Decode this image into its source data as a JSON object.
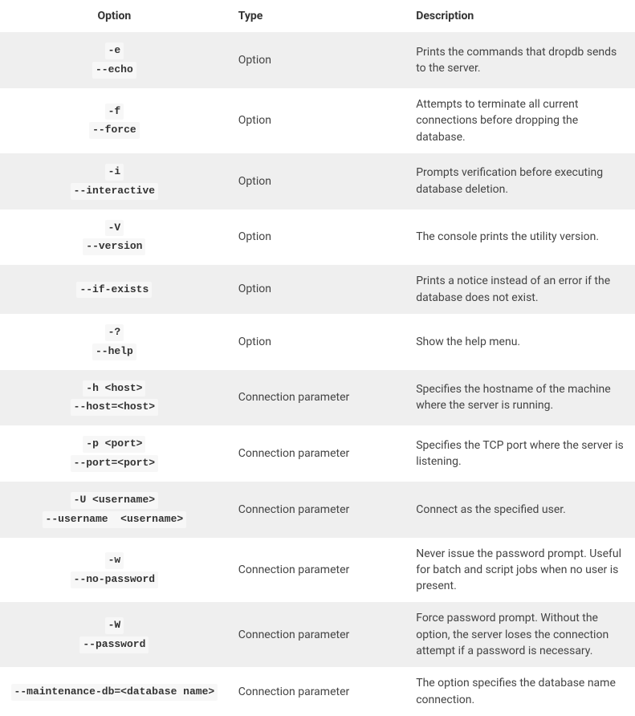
{
  "table": {
    "columns": [
      "Option",
      "Type",
      "Description"
    ],
    "col_widths_pct": [
      36,
      28,
      36
    ],
    "header_color": "#333333",
    "header_bg": "#ffffff",
    "row_bg_odd": "#efefef",
    "row_bg_even": "#ffffff",
    "code_bg": "#f7f7f7",
    "code_color": "#333333",
    "body_color": "#444444",
    "font_family": "-apple-system, Segoe UI, Roboto, Helvetica, Arial, sans-serif",
    "code_font_family": "Courier New, monospace",
    "rows": [
      {
        "option": [
          "-e",
          "--echo"
        ],
        "type": "Option",
        "description": "Prints the commands that dropdb sends to the server."
      },
      {
        "option": [
          "-f",
          "--force"
        ],
        "type": "Option",
        "description": "Attempts to terminate all current connections before dropping the database."
      },
      {
        "option": [
          "-i",
          "--interactive"
        ],
        "type": "Option",
        "description": "Prompts verification before executing database deletion."
      },
      {
        "option": [
          "-V",
          "--version"
        ],
        "type": "Option",
        "description": "The console prints the utility version."
      },
      {
        "option": [
          "--if-exists"
        ],
        "type": "Option",
        "description": "Prints a notice instead of an error if the database does not exist."
      },
      {
        "option": [
          "-?",
          "--help"
        ],
        "type": "Option",
        "description": "Show the help menu."
      },
      {
        "option": [
          "-h <host>",
          "--host=<host>"
        ],
        "type": "Connection parameter",
        "description": "Specifies the hostname of the machine where the server is running."
      },
      {
        "option": [
          "-p <port>",
          "--port=<port>"
        ],
        "type": "Connection parameter",
        "description": "Specifies the TCP port where the server is listening."
      },
      {
        "option": [
          "-U <username>",
          "--username  <username>"
        ],
        "type": "Connection parameter",
        "description": "Connect as the specified user."
      },
      {
        "option": [
          "-w",
          "--no-password"
        ],
        "type": "Connection parameter",
        "description": "Never issue the password prompt. Useful for batch and script jobs when no user is present."
      },
      {
        "option": [
          "-W",
          "--password"
        ],
        "type": "Connection parameter",
        "description": "Force password prompt. Without the option, the server loses the connection attempt if a password is necessary."
      },
      {
        "option": [
          "--maintenance-db=<database name>"
        ],
        "type": "Connection parameter",
        "description": "The option specifies the database name connection."
      }
    ]
  }
}
